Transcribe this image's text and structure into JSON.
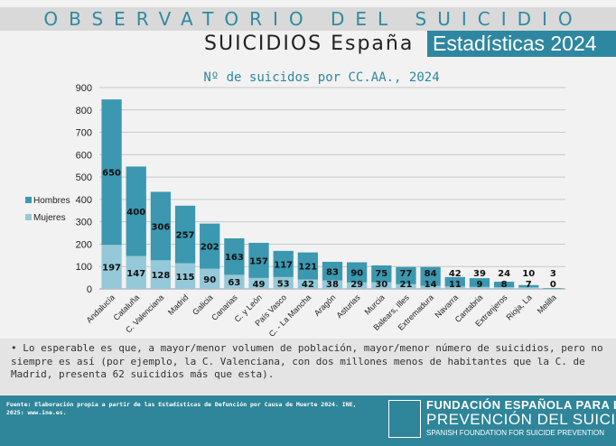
{
  "header": {
    "title": "OBSERVATORIO DEL SUICIDIO",
    "subtitle": "SUICIDIOS España",
    "badge": "Estadísticas 2024"
  },
  "note": "• Lo esperable es que, a mayor/menor volumen de población, mayor/menor número de suicidios, pero no siempre es así (por ejemplo, la C. Valenciana, con dos millones menos de habitantes que la C. de Madrid, presenta 62 suicidios más que esta).",
  "footer": {
    "source": "Fuente: Elaboración propia a partir de las Estadísticas de Defunción por Causa de Muerte 2024. INE, 2025: www.ine.es.",
    "logo_line1": "FUNDACIÓN ESPAÑOLA PARA LA",
    "logo_line2": "PREVENCIÓN DEL SUICIDIO",
    "logo_line3": "SPANISH FOUNDATION FOR SUICIDE PREVENTION"
  },
  "colors": {
    "hombres": "#3b98b0",
    "mujeres": "#95c8d8",
    "accent": "#2e87a0"
  },
  "chart_data": {
    "type": "bar",
    "stacked": true,
    "title": "Nº de suicidos por CC.AA., 2024",
    "ylim": [
      0,
      900
    ],
    "yticks": [
      0,
      100,
      200,
      300,
      400,
      500,
      600,
      700,
      800,
      900
    ],
    "grid": true,
    "legend": "left",
    "categories": [
      "Andalucía",
      "Cataluña",
      "C. Valenciana",
      "Madrid",
      "Galicia",
      "Canarias",
      "C. y León",
      "País Vasco",
      "C. - La Mancha",
      "Aragón",
      "Asturias",
      "Murcia",
      "Balears, Illes",
      "Extremadura",
      "Navarra",
      "Cantabria",
      "Extranjeros",
      "Rioja, La",
      "Melilla"
    ],
    "series": [
      {
        "name": "Mujeres",
        "values": [
          197,
          147,
          128,
          115,
          90,
          63,
          49,
          53,
          42,
          38,
          29,
          30,
          21,
          14,
          11,
          9,
          8,
          7,
          0
        ]
      },
      {
        "name": "Hombres",
        "values": [
          650,
          400,
          306,
          257,
          202,
          163,
          157,
          117,
          121,
          83,
          90,
          75,
          77,
          84,
          42,
          39,
          24,
          10,
          3
        ]
      }
    ]
  }
}
